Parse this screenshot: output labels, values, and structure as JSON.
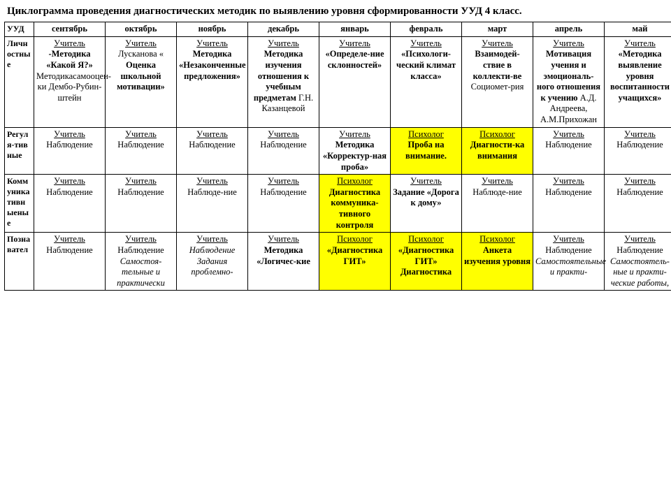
{
  "title": "Циклограмма проведения диагностических методик по выявлению уровня сформированности УУД 4 класс.",
  "colors": {
    "highlight": "#ffff00",
    "border": "#000000",
    "bg": "#ffffff",
    "text": "#000000"
  },
  "fonts": {
    "body_family": "Times New Roman",
    "body_size_pt": 10,
    "title_size_pt": 12
  },
  "table": {
    "columns": [
      "УУД",
      "сентябрь",
      "октябрь",
      "ноябрь",
      "декабрь",
      "январь",
      "февраль",
      "март",
      "апрель",
      "май"
    ],
    "rows": [
      {
        "header": "Личностные",
        "cells": [
          {
            "role": "Учитель",
            "text": "-Методика «Какой Я?» Методикасамооцен-ки Дембо-Рубин-штейн",
            "bold_parts": [
              "-Методика «Какой Я?»"
            ]
          },
          {
            "role": "Учитель",
            "text": "Лусканова « Оценка школьной мотивации»",
            "bold_parts": [
              "Оценка школьной мотивации»"
            ]
          },
          {
            "role": "Учитель",
            "text": "Методика «Незаконченные предложения»",
            "bold": true
          },
          {
            "role": "Учитель",
            "text": "Методика изучения отношения к учебным предметам Г.Н. Казанцевой",
            "bold_parts": [
              "Методика изучения отношения к учебным предметам"
            ]
          },
          {
            "role": "Учитель",
            "text": "«Определе-ние склонностей»",
            "bold": true
          },
          {
            "role": "Учитель",
            "text": "«Психологи-ческий климат класса»",
            "bold": true
          },
          {
            "role": "Учитель",
            "text": "Взаимодей-ствие в коллекти-ве Социомет-рия",
            "bold_parts": [
              "Взаимодей-ствие в коллекти-ве"
            ]
          },
          {
            "role": "Учитель",
            "text": "Мотивация учения и эмоциональ-ного отношения к учению А.Д. Андреева, А.М.Прихожан",
            "bold_parts": [
              "Мотивация учения и эмоциональ-ного отношения к учению"
            ]
          },
          {
            "role": "Учитель",
            "text": " «Методика выявление уровня воспитанности учащихся»",
            "bold": true
          }
        ]
      },
      {
        "header": "Регуля-тивные",
        "cells": [
          {
            "role": "Учитель",
            "text": "Наблюдение"
          },
          {
            "role": "Учитель",
            "text": "Наблюдение"
          },
          {
            "role": "Учитель",
            "text": "Наблюдение"
          },
          {
            "role": "Учитель",
            "text": " Наблюдение"
          },
          {
            "role": "Учитель",
            "text": "Методика «Корректур-ная проба»",
            "bold": true
          },
          {
            "role": "Психолог",
            "text": "Проба на внимание.",
            "bold": true,
            "highlight": true
          },
          {
            "role": "Психолог",
            "text": "Диагности-ка внимания",
            "bold": true,
            "highlight": true
          },
          {
            "role": "Учитель",
            "text": " Наблюдение"
          },
          {
            "role": "Учитель",
            "text": "  Наблюдение"
          }
        ]
      },
      {
        "header": "Коммуникативныеные",
        "cells": [
          {
            "role": "Учитель",
            "text": "Наблюдение"
          },
          {
            "role": "Учитель",
            "text": "Наблюдение"
          },
          {
            "role": "Учитель",
            "text": "Наблюде-ние"
          },
          {
            "role": "Учитель",
            "text": " Наблюдение"
          },
          {
            "role": "Психолог",
            "text": "Диагностика коммуника-тивного контроля",
            "bold": true,
            "highlight": true
          },
          {
            "role": "Учитель",
            "text": "Задание «Дорога к дому»",
            "bold": true
          },
          {
            "role": "Учитель",
            "text": "Наблюде-ние"
          },
          {
            "role": "Учитель",
            "text": "Наблюдение"
          },
          {
            "role": "Учитель",
            "text": "Наблюдение"
          }
        ]
      },
      {
        "header": "Познавател",
        "cells": [
          {
            "role": "Учитель",
            "text": "Наблюдение"
          },
          {
            "role": "Учитель",
            "text": "Наблюдение Самостоя-тельные и практически",
            "italic": true,
            "italic_from": "Наблюдение"
          },
          {
            "role": "Учитель",
            "text": "Наблюдение Задания проблемно-",
            "italic": true
          },
          {
            "role": "Учитель",
            "text": "Методика «Логичес-кие",
            "bold": true
          },
          {
            "role": "Психолог",
            "text": "«Диагностика ГИТ»",
            "bold": true,
            "highlight": true
          },
          {
            "role": "Психолог",
            "text": "«Диагностика ГИТ» Диагностика",
            "bold": true,
            "highlight": true
          },
          {
            "role": "Психолог",
            "text": "Анкета изучения уровня",
            "bold": true,
            "highlight": true
          },
          {
            "role": "Учитель",
            "text": "Наблюдение Самостоятельные и практи-",
            "italic": true,
            "italic_from": "Наблюдение"
          },
          {
            "role": "Учитель",
            "text": "Наблюдение Самостоятель-ные и практи-ческие работы,",
            "italic": true,
            "italic_from": "Наблюдение"
          }
        ]
      }
    ]
  }
}
